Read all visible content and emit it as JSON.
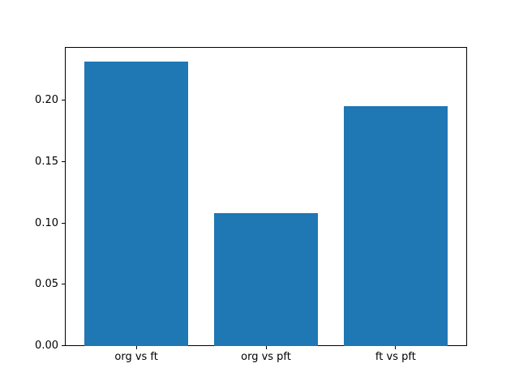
{
  "chart_data": {
    "type": "bar",
    "title": "",
    "xlabel": "",
    "ylabel": "",
    "categories": [
      "org vs ft",
      "org vs pft",
      "ft vs pft"
    ],
    "values": [
      0.232,
      0.108,
      0.196
    ],
    "bar_width": 0.8,
    "xlim": [
      -0.545,
      2.545
    ],
    "ylim": [
      0,
      0.2436
    ],
    "yticks": {
      "values": [
        0.0,
        0.05,
        0.1,
        0.15,
        0.2
      ],
      "labels": [
        "0.00",
        "0.05",
        "0.10",
        "0.15",
        "0.20"
      ]
    },
    "grid": false,
    "legend": null,
    "colors": {
      "bar": "#1f77b4",
      "background": "#ffffff",
      "spine": "#000000",
      "tick_text": "#000000"
    }
  }
}
